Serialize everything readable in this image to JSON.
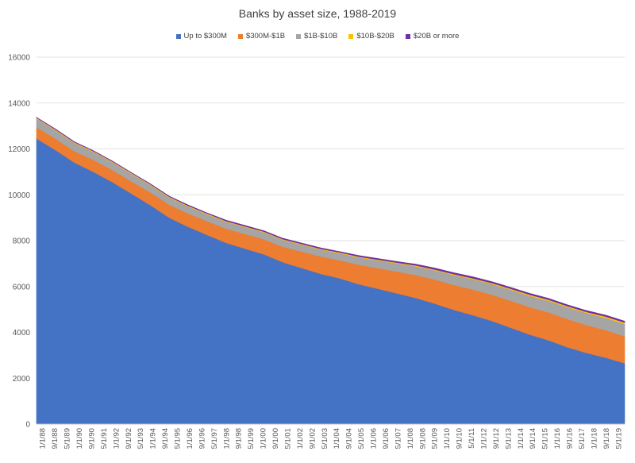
{
  "chart_data": {
    "type": "area",
    "stacked": true,
    "title": "Banks by asset size, 1988-2019",
    "xlabel": "",
    "ylabel": "",
    "ylim": [
      0,
      16000
    ],
    "y_ticks": [
      0,
      2000,
      4000,
      6000,
      8000,
      10000,
      12000,
      14000,
      16000
    ],
    "legend_position": "top",
    "grid": true,
    "x_tick_labels": [
      "1/1/88",
      "9/1/88",
      "5/1/89",
      "1/1/90",
      "9/1/90",
      "5/1/91",
      "1/1/92",
      "9/1/92",
      "5/1/93",
      "1/1/94",
      "9/1/94",
      "5/1/95",
      "1/1/96",
      "9/1/96",
      "5/1/97",
      "1/1/98",
      "9/1/98",
      "5/1/99",
      "1/1/00",
      "9/1/00",
      "5/1/01",
      "1/1/02",
      "9/1/02",
      "5/1/03",
      "1/1/04",
      "9/1/04",
      "5/1/05",
      "1/1/06",
      "9/1/06",
      "5/1/07",
      "1/1/08",
      "9/1/08",
      "5/1/09",
      "1/1/10",
      "9/1/10",
      "5/1/11",
      "1/1/12",
      "9/1/12",
      "5/1/13",
      "1/1/14",
      "9/1/14",
      "5/1/15",
      "1/1/16",
      "9/1/16",
      "5/1/17",
      "1/1/18",
      "9/1/18",
      "5/1/19"
    ],
    "x": [
      "1988",
      "1989",
      "1990",
      "1991",
      "1992",
      "1993",
      "1994",
      "1995",
      "1996",
      "1997",
      "1998",
      "1999",
      "2000",
      "2001",
      "2002",
      "2003",
      "2004",
      "2005",
      "2006",
      "2007",
      "2008",
      "2009",
      "2010",
      "2011",
      "2012",
      "2013",
      "2014",
      "2015",
      "2016",
      "2017",
      "2018",
      "2019"
    ],
    "series": [
      {
        "name": "Up to $300M",
        "color": "#4472C4",
        "values": [
          12450,
          11950,
          11400,
          11000,
          10550,
          10050,
          9550,
          9000,
          8600,
          8250,
          7900,
          7650,
          7400,
          7050,
          6800,
          6550,
          6350,
          6100,
          5900,
          5700,
          5500,
          5250,
          4980,
          4750,
          4500,
          4200,
          3900,
          3650,
          3350,
          3100,
          2900,
          2650
        ]
      },
      {
        "name": "$300M-$1B",
        "color": "#ED7D31",
        "values": [
          500,
          500,
          500,
          520,
          530,
          540,
          560,
          570,
          580,
          600,
          620,
          640,
          660,
          680,
          720,
          760,
          790,
          850,
          900,
          950,
          1000,
          1050,
          1090,
          1120,
          1140,
          1180,
          1200,
          1220,
          1230,
          1220,
          1200,
          1180
        ]
      },
      {
        "name": "$1B-$10B",
        "color": "#A5A5A5",
        "values": [
          380,
          370,
          360,
          350,
          340,
          330,
          320,
          310,
          310,
          300,
          300,
          300,
          300,
          300,
          300,
          300,
          310,
          320,
          340,
          360,
          380,
          400,
          430,
          450,
          470,
          480,
          490,
          500,
          510,
          520,
          530,
          540
        ]
      },
      {
        "name": "$10B-$20B",
        "color": "#FFC000",
        "values": [
          30,
          30,
          30,
          30,
          30,
          30,
          30,
          30,
          30,
          30,
          30,
          30,
          30,
          30,
          30,
          30,
          30,
          30,
          30,
          30,
          40,
          40,
          40,
          40,
          40,
          40,
          50,
          50,
          50,
          50,
          60,
          60
        ]
      },
      {
        "name": "$20B or more",
        "color": "#7030A0",
        "values": [
          20,
          20,
          20,
          20,
          20,
          20,
          20,
          30,
          30,
          30,
          40,
          40,
          40,
          40,
          40,
          40,
          40,
          50,
          50,
          50,
          50,
          60,
          60,
          60,
          60,
          60,
          60,
          60,
          60,
          60,
          60,
          60
        ]
      }
    ]
  }
}
